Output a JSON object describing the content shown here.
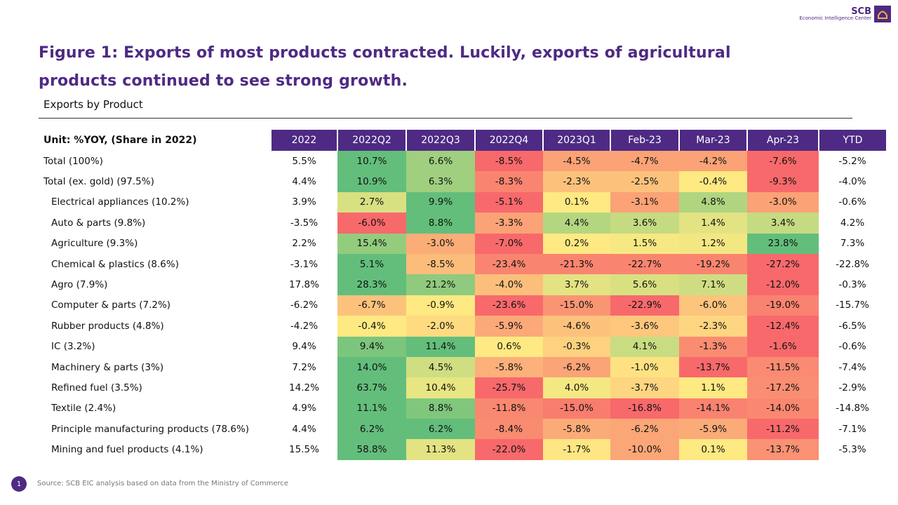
{
  "logo": {
    "name": "SCB",
    "subtitle": "Economic Intelligence Center"
  },
  "title": "Figure 1: Exports of most products contracted. Luckily, exports of agricultural products continued to see strong growth.",
  "subtitle": "Exports by Product",
  "table": {
    "unit_label": "Unit: %YOY, (Share in 2022)",
    "columns": [
      "2022",
      "2022Q2",
      "2022Q3",
      "2022Q4",
      "2023Q1",
      "Feb-23",
      "Mar-23",
      "Apr-23",
      "YTD"
    ],
    "rows": [
      {
        "label": "Total  (100%)",
        "indent": false,
        "values": [
          "5.5%",
          "10.7%",
          "6.6%",
          "-8.5%",
          "-4.5%",
          "-4.7%",
          "-4.2%",
          "-7.6%",
          "-5.2%"
        ],
        "colors": [
          "#63be7b",
          "#9fcf7f",
          "#f8696b",
          "#fba276",
          "#fba276",
          "#fba276",
          "#f8696b"
        ]
      },
      {
        "label": "Total (ex. gold) (97.5%)",
        "indent": false,
        "values": [
          "4.4%",
          "10.9%",
          "6.3%",
          "-8.3%",
          "-2.3%",
          "-2.5%",
          "-0.4%",
          "-9.3%",
          "-4.0%"
        ],
        "colors": [
          "#63be7b",
          "#9fcf7f",
          "#f98570",
          "#fcc27c",
          "#fcc27c",
          "#fee982",
          "#f8696b"
        ]
      },
      {
        "label": "Electrical appliances  (10.2%)",
        "indent": true,
        "values": [
          "3.9%",
          "2.7%",
          "9.9%",
          "-5.1%",
          "0.1%",
          "-3.1%",
          "4.8%",
          "-3.0%",
          "-0.6%"
        ],
        "colors": [
          "#d9e082",
          "#63be7b",
          "#f8696b",
          "#fee982",
          "#fba276",
          "#b0d580",
          "#fba276"
        ]
      },
      {
        "label": "Auto & parts  (9.8%)",
        "indent": true,
        "values": [
          "-3.5%",
          "-6.0%",
          "8.8%",
          "-3.3%",
          "4.4%",
          "3.6%",
          "1.4%",
          "3.4%",
          "4.2%"
        ],
        "colors": [
          "#f8696b",
          "#63be7b",
          "#fba276",
          "#b5d680",
          "#c5db81",
          "#e3e383",
          "#c5db81"
        ]
      },
      {
        "label": "Agriculture  (9.3%)",
        "indent": true,
        "values": [
          "2.2%",
          "15.4%",
          "-3.0%",
          "-7.0%",
          "0.2%",
          "1.5%",
          "1.2%",
          "23.8%",
          "7.3%"
        ],
        "colors": [
          "#94cc7e",
          "#fbad78",
          "#f8696b",
          "#fee982",
          "#f6e883",
          "#f3e783",
          "#63be7b"
        ]
      },
      {
        "label": "Chemical & plastics  (8.6%)",
        "indent": true,
        "values": [
          "-3.1%",
          "5.1%",
          "-8.5%",
          "-23.4%",
          "-21.3%",
          "-22.7%",
          "-19.2%",
          "-27.2%",
          "-22.8%"
        ],
        "colors": [
          "#63be7b",
          "#fcbd7b",
          "#f98570",
          "#f98570",
          "#f98570",
          "#f98570",
          "#f8696b"
        ]
      },
      {
        "label": "Agro  (7.9%)",
        "indent": true,
        "values": [
          "17.8%",
          "28.3%",
          "21.2%",
          "-4.0%",
          "3.7%",
          "5.6%",
          "7.1%",
          "-12.0%",
          "-0.3%"
        ],
        "colors": [
          "#63be7b",
          "#8fca7e",
          "#fcbf7b",
          "#e3e383",
          "#d9e082",
          "#cfdd82",
          "#f8696b"
        ]
      },
      {
        "label": "Computer & parts  (7.2%)",
        "indent": true,
        "values": [
          "-6.2%",
          "-6.7%",
          "-0.9%",
          "-23.6%",
          "-15.0%",
          "-22.9%",
          "-6.0%",
          "-19.0%",
          "-15.7%"
        ],
        "colors": [
          "#fcc27c",
          "#fee982",
          "#f8696b",
          "#fa9574",
          "#f8696b",
          "#fcc47c",
          "#f98370"
        ]
      },
      {
        "label": "Rubber products  (4.8%)",
        "indent": true,
        "values": [
          "-4.2%",
          "-0.4%",
          "-2.0%",
          "-5.9%",
          "-4.6%",
          "-3.6%",
          "-2.3%",
          "-12.4%",
          "-6.5%"
        ],
        "colors": [
          "#fee982",
          "#fedb80",
          "#fba978",
          "#fcc27c",
          "#fdc77d",
          "#fed580",
          "#f8696b"
        ]
      },
      {
        "label": "IC  (3.2%)",
        "indent": true,
        "values": [
          "9.4%",
          "9.4%",
          "11.4%",
          "0.6%",
          "-0.3%",
          "4.1%",
          "-1.3%",
          "-1.6%",
          "-0.6%"
        ],
        "colors": [
          "#7cc57d",
          "#63be7b",
          "#fee982",
          "#fdd17f",
          "#c8dc81",
          "#fa8c72",
          "#f8696b"
        ]
      },
      {
        "label": "Machinery & parts  (3%)",
        "indent": true,
        "values": [
          "7.2%",
          "14.0%",
          "4.5%",
          "-5.8%",
          "-6.2%",
          "-1.0%",
          "-13.7%",
          "-11.5%",
          "-7.4%"
        ],
        "colors": [
          "#63be7b",
          "#d0de82",
          "#fcb07a",
          "#fba477",
          "#fee282",
          "#f8696b",
          "#fa8a72"
        ]
      },
      {
        "label": "Refined fuel  (3.5%)",
        "indent": true,
        "values": [
          "14.2%",
          "63.7%",
          "10.4%",
          "-25.7%",
          "4.0%",
          "-3.7%",
          "1.1%",
          "-17.2%",
          "-2.9%"
        ],
        "colors": [
          "#63be7b",
          "#e8e583",
          "#f8696b",
          "#f4e883",
          "#fed580",
          "#fee982",
          "#fa8e72"
        ]
      },
      {
        "label": "Textile  (2.4%)",
        "indent": true,
        "values": [
          "4.9%",
          "11.1%",
          "8.8%",
          "-11.8%",
          "-15.0%",
          "-16.8%",
          "-14.1%",
          "-14.0%",
          "-14.8%"
        ],
        "colors": [
          "#63be7b",
          "#80c77d",
          "#f98870",
          "#f97d6e",
          "#f8696b",
          "#f98370",
          "#fa8770"
        ]
      },
      {
        "label": "Principle manufacturing products (78.6%)",
        "indent": true,
        "values": [
          "4.4%",
          "6.2%",
          "6.2%",
          "-8.4%",
          "-5.8%",
          "-6.2%",
          "-5.9%",
          "-11.2%",
          "-7.1%"
        ],
        "colors": [
          "#63be7b",
          "#63be7b",
          "#f98b71",
          "#fbab78",
          "#fba677",
          "#fbab78",
          "#f8696b"
        ]
      },
      {
        "label": "Mining and fuel products (4.1%)",
        "indent": true,
        "values": [
          "15.5%",
          "58.8%",
          "11.3%",
          "-22.0%",
          "-1.7%",
          "-10.0%",
          "0.1%",
          "-13.7%",
          "-5.3%"
        ],
        "colors": [
          "#63be7b",
          "#e3e383",
          "#f8696b",
          "#fee683",
          "#fba677",
          "#fee982",
          "#fa9273"
        ]
      }
    ]
  },
  "footer": {
    "page": "1",
    "source": "Source: SCB EIC analysis based on data from the Ministry of Commerce"
  }
}
